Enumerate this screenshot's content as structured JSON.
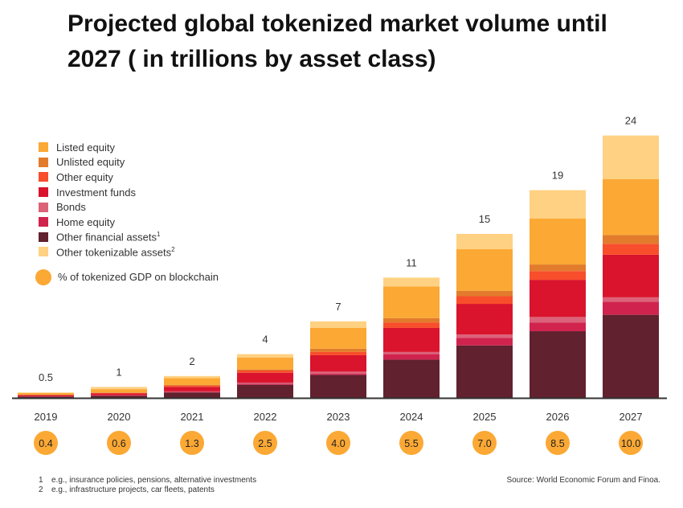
{
  "chart_data": {
    "type": "bar",
    "stacked": true,
    "title": "Projected global tokenized market volume until 2027 ( in trillions by asset class)",
    "categories": [
      "2019",
      "2020",
      "2021",
      "2022",
      "2023",
      "2024",
      "2025",
      "2026",
      "2027"
    ],
    "totals": [
      "0.5",
      "1",
      "2",
      "4",
      "7",
      "11",
      "15",
      "19",
      "24"
    ],
    "gdp_percent": [
      "0.4",
      "0.6",
      "1.3",
      "2.5",
      "4.0",
      "5.5",
      "7.0",
      "8.5",
      "10.0"
    ],
    "gdp_label": "% of tokenized GDP on blockchain",
    "gdp_color": "#FBA834",
    "series": [
      {
        "name": "Other financial assets",
        "footnote": "1",
        "color": "#61212F",
        "values": [
          0.13,
          0.2,
          0.5,
          1.2,
          2.1,
          3.5,
          4.8,
          6.1,
          7.6
        ]
      },
      {
        "name": "Home equity",
        "color": "#D0234D",
        "values": [
          0.01,
          0.03,
          0.05,
          0.1,
          0.1,
          0.5,
          0.7,
          0.8,
          1.2
        ]
      },
      {
        "name": "Bonds",
        "color": "#DB6279",
        "values": [
          0.01,
          0.02,
          0.05,
          0.1,
          0.2,
          0.2,
          0.3,
          0.5,
          0.4
        ]
      },
      {
        "name": "Investment funds",
        "color": "#D9142C",
        "values": [
          0.1,
          0.15,
          0.4,
          0.9,
          1.5,
          2.2,
          2.8,
          3.4,
          3.9
        ]
      },
      {
        "name": "Other equity",
        "color": "#F84E2B",
        "values": [
          0.03,
          0.05,
          0.1,
          0.2,
          0.3,
          0.5,
          0.7,
          0.8,
          1.0
        ]
      },
      {
        "name": "Unlisted equity",
        "color": "#E27B2B",
        "values": [
          0.02,
          0.05,
          0.1,
          0.1,
          0.3,
          0.4,
          0.5,
          0.6,
          0.8
        ]
      },
      {
        "name": "Listed equity",
        "color": "#FBA834",
        "values": [
          0.15,
          0.3,
          0.6,
          1.1,
          1.9,
          2.9,
          3.8,
          4.2,
          5.1
        ]
      },
      {
        "name": "Other tokenizable assets",
        "footnote": "2",
        "color": "#FFD182",
        "values": [
          0.05,
          0.2,
          0.2,
          0.3,
          0.6,
          0.8,
          1.4,
          2.6,
          4.0
        ]
      }
    ],
    "legend_order": [
      6,
      5,
      4,
      3,
      2,
      1,
      0,
      7
    ],
    "legend_position": "top-left",
    "grid": false,
    "ylim": [
      0,
      24
    ]
  },
  "footnotes": [
    {
      "n": "1",
      "text": "e.g., insurance policies, pensions, alternative investments"
    },
    {
      "n": "2",
      "text": "e.g., infrastructure projects, car fleets, patents"
    }
  ],
  "source": "Source: World Economic Forum and Finoa."
}
